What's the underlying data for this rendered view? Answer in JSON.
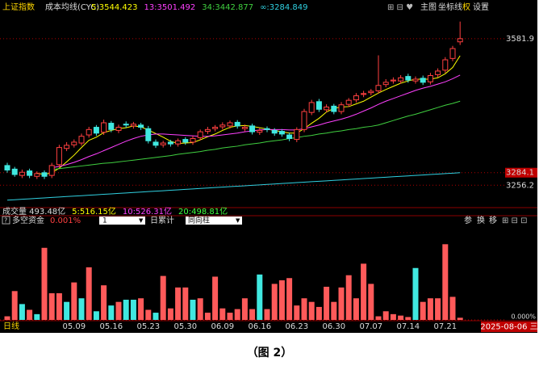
{
  "header": {
    "symbol": "上证指数",
    "indicator": "成本均线(CYC)",
    "menu": [
      "主图",
      "坐标线",
      "权",
      "设置"
    ]
  },
  "volume_legend": [
    {
      "text": "成交量 493.48亿",
      "color": "#dcdcdc"
    },
    {
      "text": "5:516.15亿",
      "color": "#ffff00"
    },
    {
      "text": "10:526.31亿",
      "color": "#ff40ff"
    },
    {
      "text": "20:498.81亿",
      "color": "#40ff40"
    }
  ],
  "sub_header": {
    "help": "?",
    "period": "1",
    "mode": "日累计",
    "style": "同向柱",
    "tools": [
      "参",
      "换",
      "移"
    ]
  },
  "footer": {
    "period": "日线",
    "date": "2025-08-06 三"
  },
  "caption": "（图 2）",
  "chart_data": [
    {
      "type": "candlestick",
      "categories": [
        null,
        null,
        null,
        null,
        null,
        null,
        null,
        null,
        null,
        "05.09",
        null,
        null,
        null,
        null,
        "05.16",
        null,
        null,
        null,
        null,
        "05.23",
        null,
        null,
        null,
        null,
        "05.30",
        null,
        null,
        null,
        null,
        "06.09",
        null,
        null,
        null,
        null,
        "06.16",
        null,
        null,
        null,
        null,
        "06.23",
        null,
        null,
        null,
        null,
        "06.30",
        null,
        null,
        null,
        null,
        "07.07",
        null,
        null,
        null,
        null,
        "07.14",
        null,
        null,
        null,
        null,
        "07.21",
        null,
        null
      ],
      "open": [
        3300,
        3292,
        3278,
        3288,
        3276,
        3284,
        3278,
        3302,
        3338,
        3346,
        3350,
        3368,
        3385,
        3374,
        3394,
        3378,
        3392,
        3388,
        3390,
        3382,
        3352,
        3346,
        3352,
        3348,
        3358,
        3352,
        3362,
        3376,
        3382,
        3386,
        3388,
        3396,
        3382,
        3388,
        3374,
        3382,
        3378,
        3376,
        3368,
        3358,
        3380,
        3418,
        3442,
        3424,
        3432,
        3420,
        3436,
        3446,
        3458,
        3462,
        3466,
        3480,
        3488,
        3488,
        3498,
        3488,
        3494,
        3486,
        3502,
        3512,
        3538,
        3575
      ],
      "high": [
        3306,
        3297,
        3291,
        3293,
        3287,
        3289,
        3306,
        3346,
        3352,
        3358,
        3371,
        3386,
        3390,
        3402,
        3399,
        3391,
        3398,
        3397,
        3395,
        3388,
        3358,
        3355,
        3357,
        3360,
        3363,
        3366,
        3380,
        3386,
        3390,
        3396,
        3400,
        3401,
        3391,
        3393,
        3384,
        3387,
        3383,
        3381,
        3373,
        3385,
        3426,
        3446,
        3448,
        3436,
        3437,
        3441,
        3450,
        3461,
        3466,
        3470,
        3545,
        3492,
        3496,
        3501,
        3504,
        3498,
        3500,
        3506,
        3516,
        3541,
        3566,
        3620
      ],
      "low": [
        3284,
        3275,
        3272,
        3272,
        3270,
        3270,
        3272,
        3296,
        3332,
        3340,
        3344,
        3362,
        3366,
        3368,
        3374,
        3372,
        3384,
        3382,
        3379,
        3349,
        3339,
        3340,
        3342,
        3342,
        3346,
        3346,
        3356,
        3370,
        3376,
        3380,
        3382,
        3382,
        3376,
        3369,
        3368,
        3374,
        3366,
        3364,
        3354,
        3352,
        3374,
        3412,
        3419,
        3418,
        3414,
        3414,
        3430,
        3440,
        3452,
        3456,
        3460,
        3474,
        3482,
        3482,
        3484,
        3482,
        3479,
        3480,
        3496,
        3506,
        3532,
        3568
      ],
      "close": [
        3290,
        3280,
        3285,
        3278,
        3282,
        3276,
        3300,
        3340,
        3345,
        3352,
        3365,
        3380,
        3372,
        3395,
        3380,
        3385,
        3390,
        3392,
        3385,
        3355,
        3345,
        3350,
        3348,
        3355,
        3352,
        3360,
        3375,
        3380,
        3385,
        3390,
        3395,
        3388,
        3385,
        3375,
        3378,
        3380,
        3372,
        3370,
        3360,
        3380,
        3420,
        3440,
        3425,
        3430,
        3420,
        3435,
        3445,
        3455,
        3460,
        3465,
        3478,
        3485,
        3490,
        3495,
        3490,
        3492,
        3485,
        3500,
        3510,
        3535,
        3560,
        3582
      ],
      "up_color": "#ff4040",
      "down_color": "#40e8e0",
      "series": [
        {
          "name": "5:3544.423",
          "color": "#ffff00",
          "values": [
            null,
            null,
            null,
            null,
            3283,
            3280,
            3284,
            3294,
            3308,
            3323,
            3340,
            3356,
            3363,
            3373,
            3378,
            3382,
            3384,
            3388,
            3386,
            3379,
            3371,
            3363,
            3354,
            3349,
            3350,
            3351,
            3357,
            3364,
            3370,
            3378,
            3385,
            3388,
            3389,
            3387,
            3384,
            3381,
            3378,
            3375,
            3372,
            3372,
            3382,
            3394,
            3405,
            3419,
            3427,
            3430,
            3431,
            3437,
            3443,
            3452,
            3461,
            3469,
            3476,
            3483,
            3488,
            3492,
            3492,
            3492,
            3495,
            3504,
            3518,
            3544
          ]
        },
        {
          "name": "13:3501.492",
          "color": "#ff40ff",
          "values": [
            null,
            null,
            null,
            null,
            null,
            null,
            3295,
            3298,
            3302,
            3307,
            3313,
            3320,
            3326,
            3333,
            3340,
            3347,
            3354,
            3360,
            3365,
            3368,
            3370,
            3370,
            3369,
            3368,
            3367,
            3366,
            3365,
            3365,
            3366,
            3368,
            3370,
            3372,
            3375,
            3377,
            3379,
            3380,
            3380,
            3380,
            3379,
            3379,
            3382,
            3386,
            3390,
            3395,
            3399,
            3403,
            3408,
            3414,
            3421,
            3428,
            3436,
            3443,
            3449,
            3455,
            3461,
            3467,
            3472,
            3476,
            3481,
            3486,
            3493,
            3501
          ]
        },
        {
          "name": "34:3442.877",
          "color": "#40d040",
          "values": [
            null,
            null,
            null,
            null,
            null,
            null,
            3291,
            3293,
            3295,
            3297,
            3299,
            3301,
            3303,
            3305,
            3306,
            3308,
            3310,
            3312,
            3314,
            3316,
            3318,
            3320,
            3322,
            3325,
            3327,
            3329,
            3331,
            3334,
            3336,
            3339,
            3341,
            3343,
            3346,
            3348,
            3350,
            3353,
            3355,
            3357,
            3360,
            3362,
            3365,
            3367,
            3370,
            3372,
            3375,
            3377,
            3380,
            3382,
            3385,
            3387,
            3390,
            3395,
            3400,
            3405,
            3410,
            3414,
            3419,
            3424,
            3429,
            3434,
            3438,
            3443
          ]
        },
        {
          "name": "∞:3284.849",
          "color": "#30d0e0",
          "values": [
            3223,
            3224,
            3225,
            3226,
            3227,
            3228,
            3229,
            3230,
            3231,
            3232,
            3233,
            3234,
            3235,
            3236,
            3237,
            3238,
            3239,
            3240,
            3241,
            3242,
            3243,
            3244,
            3245,
            3246,
            3247,
            3248,
            3249,
            3250,
            3251,
            3252,
            3253,
            3254,
            3255,
            3256,
            3257,
            3258,
            3259,
            3260,
            3261,
            3262,
            3263,
            3264,
            3265,
            3266,
            3267,
            3268,
            3269,
            3270,
            3271,
            3272,
            3273,
            3274,
            3275,
            3276,
            3277,
            3278,
            3279,
            3280,
            3281,
            3282,
            3283,
            3284
          ]
        }
      ],
      "ylim": [
        3210,
        3641
      ],
      "yticks": [
        3256.2,
        3284.1,
        3581.9
      ],
      "highlighted_ytick": 1,
      "grid": true
    },
    {
      "type": "bar",
      "title": "多空资金",
      "subtitle": "0.001%",
      "values": [
        5,
        40,
        22,
        14,
        8,
        100,
        37,
        37,
        25,
        52,
        30,
        73,
        12,
        48,
        20,
        25,
        28,
        28,
        30,
        14,
        10,
        61,
        16,
        45,
        45,
        28,
        30,
        10,
        60,
        16,
        10,
        15,
        30,
        15,
        63,
        15,
        50,
        55,
        58,
        20,
        30,
        25,
        18,
        46,
        25,
        45,
        62,
        30,
        78,
        50,
        5,
        12,
        8,
        6,
        4,
        72,
        25,
        30,
        30,
        105,
        32,
        3
      ],
      "colors": [
        "#ff5a5a",
        "#ff5a5a",
        "#40e8e0",
        "#ff5a5a",
        "#40e8e0",
        "#ff5a5a",
        "#ff5a5a",
        "#ff5a5a",
        "#40e8e0",
        "#ff5a5a",
        "#40e8e0",
        "#ff5a5a",
        "#40e8e0",
        "#ff5a5a",
        "#40e8e0",
        "#ff5a5a",
        "#40e8e0",
        "#40e8e0",
        "#ff5a5a",
        "#ff5a5a",
        "#40e8e0",
        "#ff5a5a",
        "#ff5a5a",
        "#ff5a5a",
        "#ff5a5a",
        "#40e8e0",
        "#ff5a5a",
        "#ff5a5a",
        "#ff5a5a",
        "#ff5a5a",
        "#ff5a5a",
        "#ff5a5a",
        "#ff5a5a",
        "#ff5a5a",
        "#40e8e0",
        "#ff5a5a",
        "#ff5a5a",
        "#ff5a5a",
        "#ff5a5a",
        "#ff5a5a",
        "#ff5a5a",
        "#ff5a5a",
        "#ff5a5a",
        "#ff5a5a",
        "#ff5a5a",
        "#ff5a5a",
        "#ff5a5a",
        "#ff5a5a",
        "#ff5a5a",
        "#ff5a5a",
        "#ff5a5a",
        "#ff5a5a",
        "#ff5a5a",
        "#ff5a5a",
        "#ff5a5a",
        "#40e8e0",
        "#ff5a5a",
        "#ff5a5a",
        "#ff5a5a",
        "#ff5a5a",
        "#ff5a5a",
        "#ff5a5a"
      ],
      "ylim": [
        0,
        130
      ],
      "yticks": [
        {
          "value": 0,
          "label": "0.000%"
        }
      ]
    }
  ]
}
